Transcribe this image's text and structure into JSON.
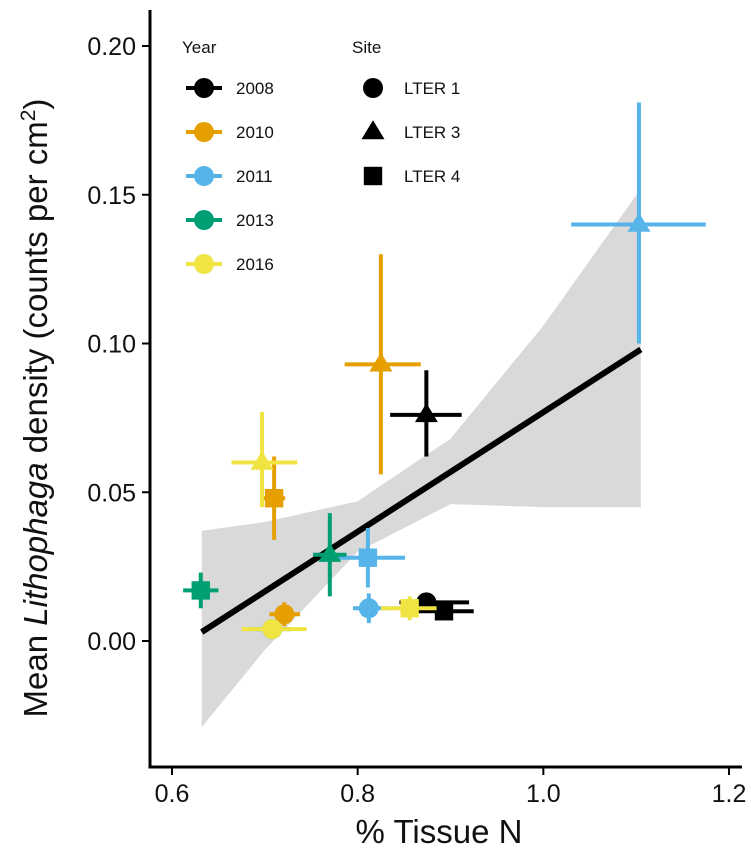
{
  "chart_data": {
    "type": "scatter",
    "xlabel": "% Tissue N",
    "ylabel": {
      "prefix": "Mean ",
      "italic": "Lithophaga",
      "middle": " density (counts per cm",
      "superscript": "2",
      "suffix": ")"
    },
    "xlim": [
      0.59,
      1.2
    ],
    "ylim": [
      -0.043,
      0.212
    ],
    "x_ticks": [
      {
        "value": 0.6,
        "label": "0.6"
      },
      {
        "value": 0.8,
        "label": "0.8"
      },
      {
        "value": 1.0,
        "label": "1.0"
      },
      {
        "value": 1.2,
        "label": "1.2"
      }
    ],
    "y_ticks": [
      {
        "value": 0.0,
        "label": "0.00"
      },
      {
        "value": 0.05,
        "label": "0.05"
      },
      {
        "value": 0.1,
        "label": "0.10"
      },
      {
        "value": 0.15,
        "label": "0.15"
      },
      {
        "value": 0.2,
        "label": "0.20"
      }
    ],
    "grid": false,
    "legend_placement": "top-left",
    "legend": {
      "year_title": "Year",
      "site_title": "Site",
      "years": [
        {
          "label": "2008",
          "color": "#000000"
        },
        {
          "label": "2010",
          "color": "#E69F00"
        },
        {
          "label": "2011",
          "color": "#56B4E9"
        },
        {
          "label": "2013",
          "color": "#009E73"
        },
        {
          "label": "2016",
          "color": "#F0E442"
        }
      ],
      "sites": [
        {
          "label": "LTER 1",
          "shape": "circle"
        },
        {
          "label": "LTER 3",
          "shape": "triangle"
        },
        {
          "label": "LTER 4",
          "shape": "square"
        }
      ]
    },
    "fit": {
      "x": [
        0.632,
        1.105
      ],
      "y": [
        0.003,
        0.098
      ],
      "band_x": [
        0.632,
        0.7,
        0.8,
        0.9,
        1.0,
        1.105
      ],
      "band_lower": [
        -0.029,
        -0.003,
        0.03,
        0.046,
        0.045,
        0.045
      ],
      "band_upper": [
        0.037,
        0.04,
        0.047,
        0.068,
        0.106,
        0.152
      ],
      "color": "#000000",
      "band_color": "#D9D9D9"
    },
    "points": [
      {
        "year": "2008",
        "site": "LTER 1",
        "x": 0.874,
        "y": 0.013,
        "x_err": [
          0.845,
          0.92
        ],
        "y_err": [
          0.011,
          0.015
        ]
      },
      {
        "year": "2008",
        "site": "LTER 3",
        "x": 0.874,
        "y": 0.076,
        "x_err": [
          0.835,
          0.912
        ],
        "y_err": [
          0.062,
          0.091
        ]
      },
      {
        "year": "2008",
        "site": "LTER 4",
        "x": 0.893,
        "y": 0.01,
        "x_err": [
          0.865,
          0.925
        ],
        "y_err": [
          0.008,
          0.012
        ]
      },
      {
        "year": "2010",
        "site": "LTER 1",
        "x": 0.721,
        "y": 0.009,
        "x_err": [
          0.705,
          0.738
        ],
        "y_err": [
          0.005,
          0.013
        ]
      },
      {
        "year": "2010",
        "site": "LTER 3",
        "x": 0.825,
        "y": 0.093,
        "x_err": [
          0.786,
          0.868
        ],
        "y_err": [
          0.056,
          0.13
        ]
      },
      {
        "year": "2010",
        "site": "LTER 4",
        "x": 0.71,
        "y": 0.048,
        "x_err": [
          0.696,
          0.722
        ],
        "y_err": [
          0.034,
          0.062
        ]
      },
      {
        "year": "2011",
        "site": "LTER 1",
        "x": 0.812,
        "y": 0.011,
        "x_err": [
          0.795,
          0.832
        ],
        "y_err": [
          0.006,
          0.016
        ]
      },
      {
        "year": "2011",
        "site": "LTER 3",
        "x": 1.103,
        "y": 0.14,
        "x_err": [
          1.03,
          1.175
        ],
        "y_err": [
          0.1,
          0.181
        ]
      },
      {
        "year": "2011",
        "site": "LTER 4",
        "x": 0.811,
        "y": 0.028,
        "x_err": [
          0.772,
          0.851
        ],
        "y_err": [
          0.018,
          0.038
        ]
      },
      {
        "year": "2013",
        "site": "LTER 1",
        "x": 0.708,
        "y": 0.004,
        "x_err": [
          0.69,
          0.728
        ],
        "y_err": [
          0.002,
          0.006
        ]
      },
      {
        "year": "2013",
        "site": "LTER 3",
        "x": 0.77,
        "y": 0.029,
        "x_err": [
          0.752,
          0.788
        ],
        "y_err": [
          0.015,
          0.043
        ]
      },
      {
        "year": "2013",
        "site": "LTER 4",
        "x": 0.631,
        "y": 0.017,
        "x_err": [
          0.612,
          0.65
        ],
        "y_err": [
          0.011,
          0.023
        ]
      },
      {
        "year": "2016",
        "site": "LTER 1",
        "x": 0.708,
        "y": 0.004,
        "x_err": [
          0.675,
          0.745
        ],
        "y_err": [
          0.002,
          0.006
        ]
      },
      {
        "year": "2016",
        "site": "LTER 3",
        "x": 0.697,
        "y": 0.06,
        "x_err": [
          0.664,
          0.735
        ],
        "y_err": [
          0.045,
          0.077
        ]
      },
      {
        "year": "2016",
        "site": "LTER 4",
        "x": 0.856,
        "y": 0.011,
        "x_err": [
          0.825,
          0.885
        ],
        "y_err": [
          0.007,
          0.015
        ]
      }
    ]
  }
}
